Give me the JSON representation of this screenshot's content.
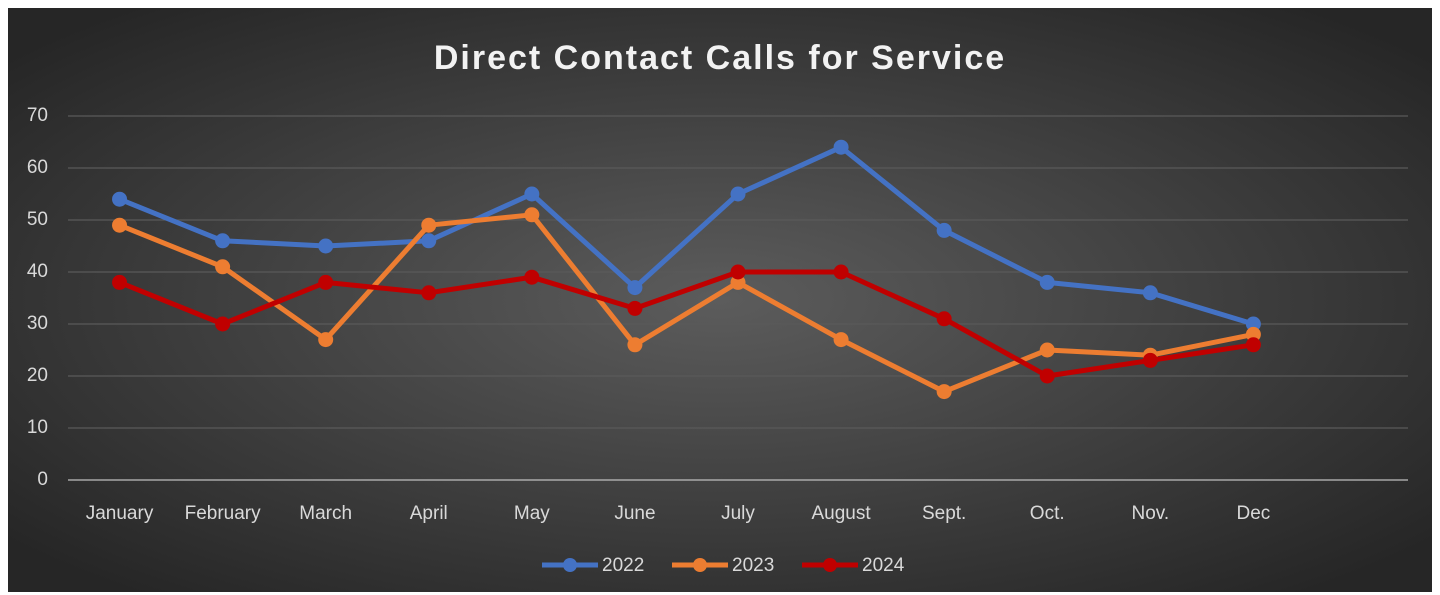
{
  "chart_data": {
    "type": "line",
    "title": "Direct Contact Calls for Service",
    "categories": [
      "January",
      "February",
      "March",
      "April",
      "May",
      "June",
      "July",
      "August",
      "Sept.",
      "Oct.",
      "Nov.",
      "Dec",
      null
    ],
    "series": [
      {
        "name": "2022",
        "color": "#4472c4",
        "values": [
          54,
          46,
          45,
          46,
          55,
          37,
          55,
          64,
          48,
          38,
          36,
          30,
          null
        ]
      },
      {
        "name": "2023",
        "color": "#ed7d31",
        "values": [
          49,
          41,
          27,
          49,
          51,
          26,
          38,
          27,
          17,
          25,
          24,
          28,
          null
        ]
      },
      {
        "name": "2024",
        "color": "#c00000",
        "values": [
          38,
          30,
          38,
          36,
          39,
          33,
          40,
          40,
          31,
          20,
          23,
          26,
          null
        ]
      }
    ],
    "ylim": [
      0,
      70
    ],
    "yticks": [
      0,
      10,
      20,
      30,
      40,
      50,
      60,
      70
    ],
    "grid": true,
    "legend": "bottom"
  }
}
